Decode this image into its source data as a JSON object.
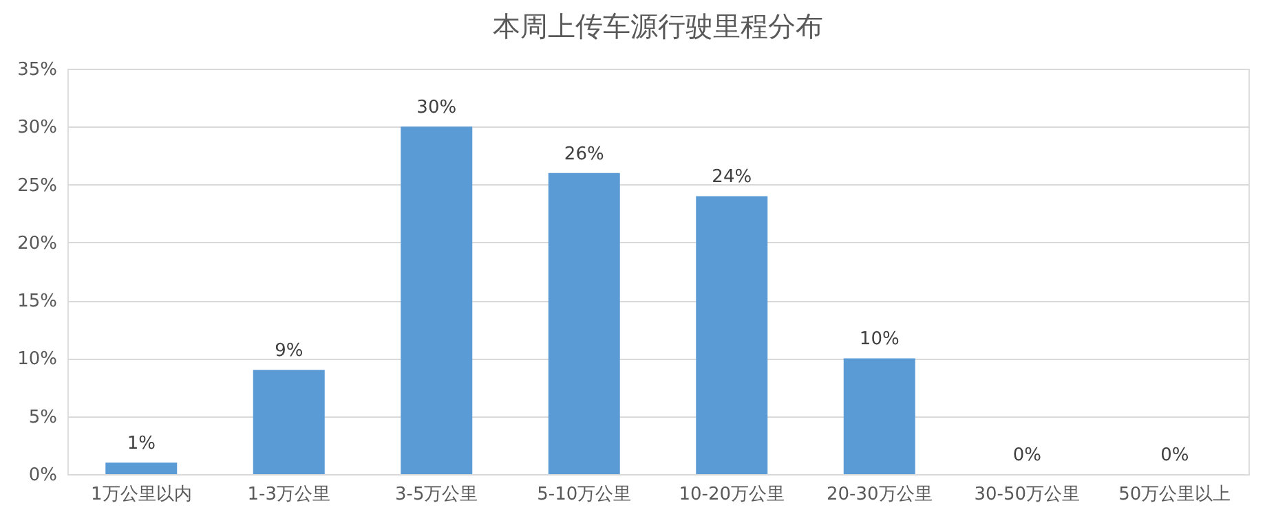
{
  "chart_data": {
    "type": "bar",
    "title": "本周上传车源行驶里程分布",
    "categories": [
      "1万公里以内",
      "1-3万公里",
      "3-5万公里",
      "5-10万公里",
      "10-20万公里",
      "20-30万公里",
      "30-50万公里",
      "50万公里以上"
    ],
    "values": [
      1,
      9,
      30,
      26,
      24,
      10,
      0,
      0
    ],
    "value_labels": [
      "1%",
      "9%",
      "30%",
      "26%",
      "24%",
      "10%",
      "0%",
      "0%"
    ],
    "color": "#5b9bd5",
    "ylim": [
      0,
      35
    ],
    "yticks": [
      {
        "value": 0,
        "label": "0%"
      },
      {
        "value": 5,
        "label": "5%"
      },
      {
        "value": 10,
        "label": "10%"
      },
      {
        "value": 15,
        "label": "15%"
      },
      {
        "value": 20,
        "label": "20%"
      },
      {
        "value": 25,
        "label": "25%"
      },
      {
        "value": 30,
        "label": "30%"
      },
      {
        "value": 35,
        "label": "35%"
      }
    ],
    "grid": "y"
  }
}
